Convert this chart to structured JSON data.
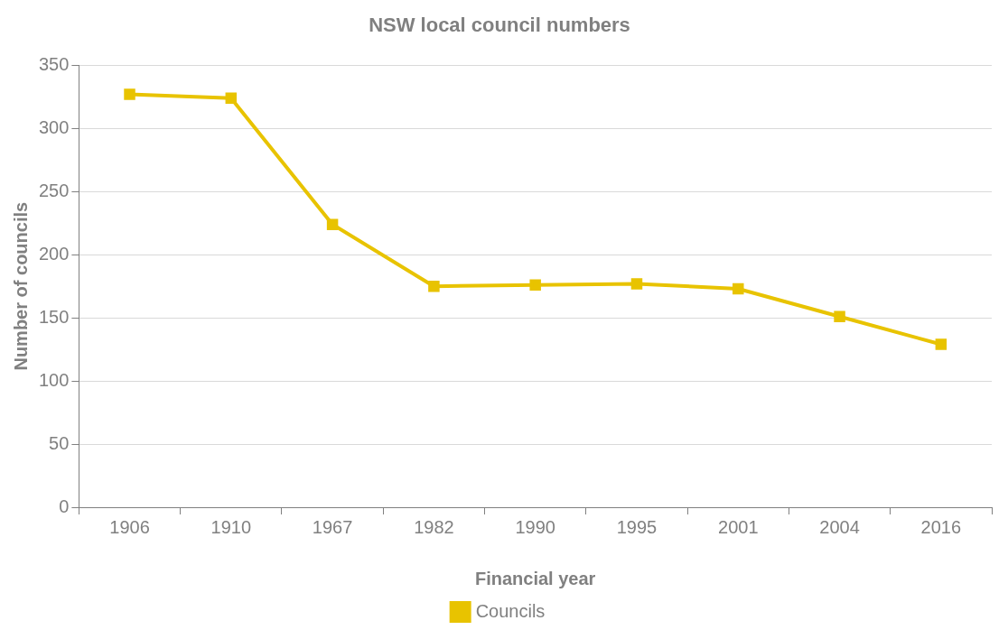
{
  "chart_data": {
    "type": "line",
    "title": "NSW local council numbers",
    "xlabel": "Financial year",
    "ylabel": "Number of councils",
    "categories": [
      "1906",
      "1910",
      "1967",
      "1982",
      "1990",
      "1995",
      "2001",
      "2004",
      "2016"
    ],
    "series": [
      {
        "name": "Councils",
        "color": "#e8c300",
        "values": [
          327,
          324,
          224,
          175,
          176,
          177,
          173,
          151,
          129
        ]
      }
    ],
    "ylim": [
      0,
      350
    ],
    "yticks": [
      0,
      50,
      100,
      150,
      200,
      250,
      300,
      350
    ],
    "grid": "y",
    "legend": "bottom",
    "marker": "square",
    "line_style": "solid"
  }
}
